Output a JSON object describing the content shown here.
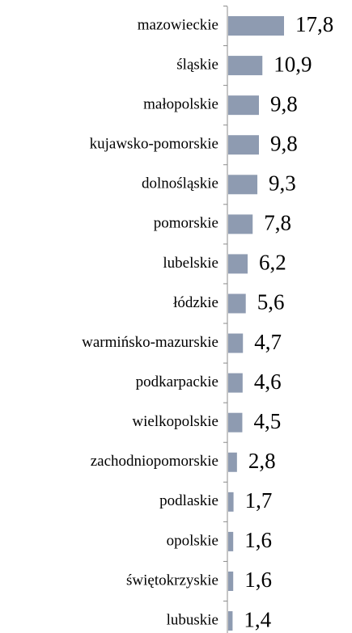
{
  "chart_data": {
    "type": "bar",
    "orientation": "horizontal",
    "categories": [
      "mazowieckie",
      "śląskie",
      "małopolskie",
      "kujawsko-pomorskie",
      "dolnośląskie",
      "pomorskie",
      "lubelskie",
      "łódzkie",
      "warmińsko-mazurskie",
      "podkarpackie",
      "wielkopolskie",
      "zachodniopomorskie",
      "podlaskie",
      "opolskie",
      "świętokrzyskie",
      "lubuskie"
    ],
    "values": [
      17.8,
      10.9,
      9.8,
      9.8,
      9.3,
      7.8,
      6.2,
      5.6,
      4.7,
      4.6,
      4.5,
      2.8,
      1.7,
      1.6,
      1.6,
      1.4
    ],
    "value_labels": [
      "17,8",
      "10,9",
      "9,8",
      "9,8",
      "9,3",
      "7,8",
      "6,2",
      "5,6",
      "4,7",
      "4,6",
      "4,5",
      "2,8",
      "1,7",
      "1,6",
      "1,6",
      "1,4"
    ],
    "color": "#8e9bb1"
  }
}
